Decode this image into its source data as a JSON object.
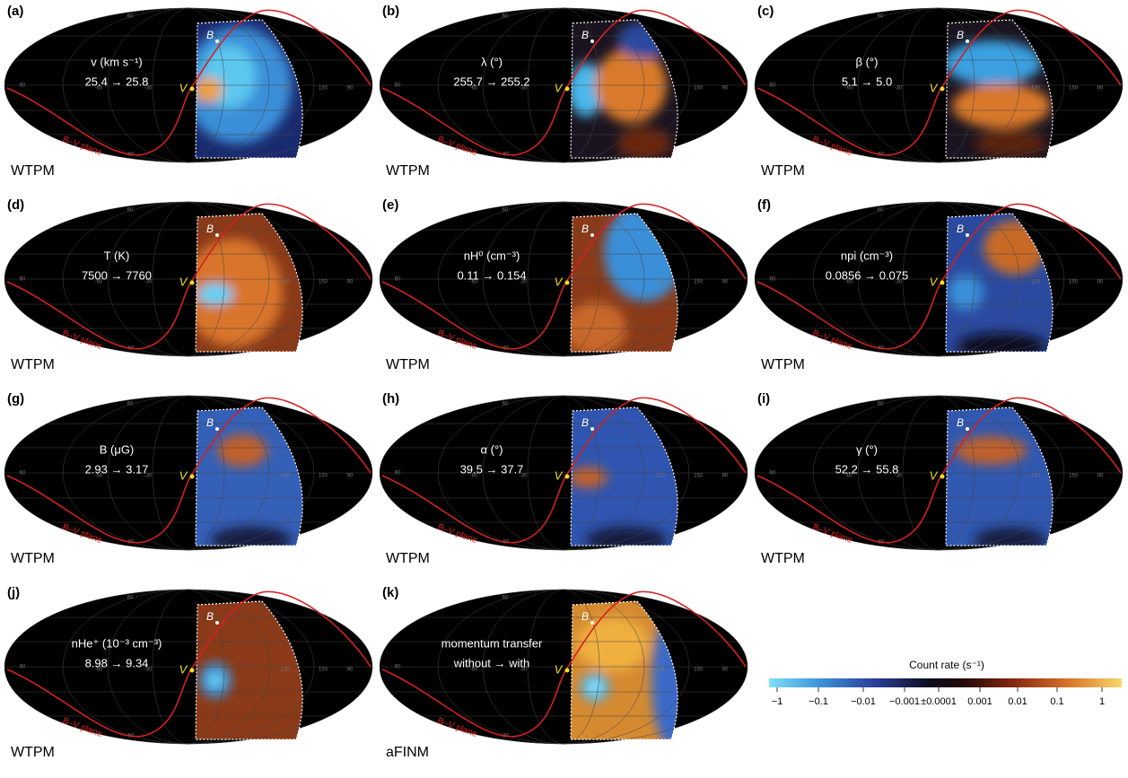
{
  "panels": [
    {
      "letter": "(a)",
      "parameter": "v (km s⁻¹)",
      "change": "25.4 → 25.8",
      "model": "WTPM"
    },
    {
      "letter": "(b)",
      "parameter": "λ (°)",
      "change": "255.7 → 255.2",
      "model": "WTPM"
    },
    {
      "letter": "(c)",
      "parameter": "β (°)",
      "change": "5.1 → 5.0",
      "model": "WTPM"
    },
    {
      "letter": "(d)",
      "parameter": "T (K)",
      "change": "7500 → 7760",
      "model": "WTPM"
    },
    {
      "letter": "(e)",
      "parameter": "nH⁰ (cm⁻³)",
      "change": "0.11 → 0.154",
      "model": "WTPM"
    },
    {
      "letter": "(f)",
      "parameter": "npi (cm⁻³)",
      "change": "0.0856 → 0.075",
      "model": "WTPM"
    },
    {
      "letter": "(g)",
      "parameter": "B (μG)",
      "change": "2.93 → 3.17",
      "model": "WTPM"
    },
    {
      "letter": "(h)",
      "parameter": "α (°)",
      "change": "39.5 → 37.7",
      "model": "WTPM"
    },
    {
      "letter": "(i)",
      "parameter": "γ (°)",
      "change": "52.2 → 55.8",
      "model": "WTPM"
    },
    {
      "letter": "(j)",
      "parameter": "nHe⁺ (10⁻³ cm⁻³)",
      "change": "8.98 → 9.34",
      "model": "WTPM"
    },
    {
      "letter": "(k)",
      "parameter": "momentum transfer",
      "change": "without → with",
      "model": "aFINM"
    }
  ],
  "map_labels": {
    "plane": "B–V plane",
    "b_vector": "B",
    "v_vector": "V",
    "grid": [
      "60",
      "-60",
      "-30",
      "120",
      "150",
      "90",
      "60",
      "-60"
    ]
  },
  "colorbar": {
    "title": "Count rate (s⁻¹)",
    "ticks": [
      "−1",
      "−0.1",
      "−0.01",
      "−0.001",
      "±0.0001",
      "0.001",
      "0.01",
      "0.1",
      "1"
    ]
  }
}
